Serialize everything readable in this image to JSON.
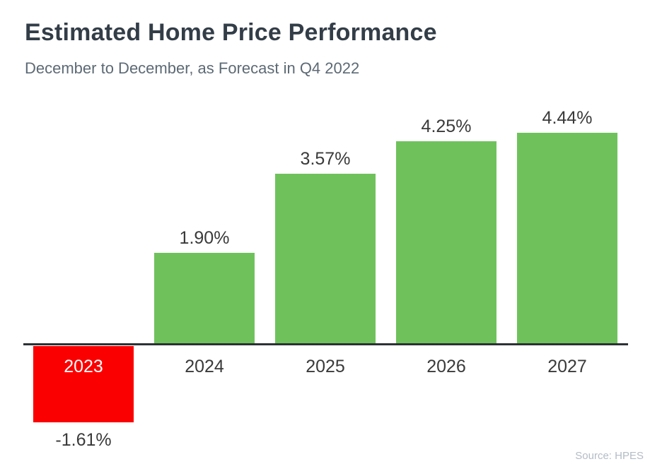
{
  "header": {
    "title": "Estimated Home Price Performance",
    "subtitle": "December to December, as Forecast in Q4 2022"
  },
  "source_credit": "Source: HPES",
  "colors": {
    "positive_bar": "#6fc25b",
    "negative_bar": "#fb0000",
    "axis": "#2c3134",
    "title_text": "#333d47",
    "subtitle_text": "#5d6a75",
    "label_text": "#3a3a3a",
    "inside_label_text": "#ffffff",
    "source_text": "#b4bcc6"
  },
  "chart_data": {
    "type": "bar",
    "categories": [
      "2023",
      "2024",
      "2025",
      "2026",
      "2027"
    ],
    "values": [
      -1.61,
      1.9,
      3.57,
      4.25,
      4.44
    ],
    "labels": [
      "-1.61%",
      "1.90%",
      "3.57%",
      "4.25%",
      "4.44%"
    ],
    "bar_colors": [
      "#fb0000",
      "#6fc25b",
      "#6fc25b",
      "#6fc25b",
      "#6fc25b"
    ],
    "title": "Estimated Home Price Performance",
    "subtitle": "December to December, as Forecast in Q4 2022",
    "xlabel": "",
    "ylabel": "",
    "ylim": [
      -2,
      5
    ],
    "grid": false,
    "legend": null,
    "annotations": [
      "Negative 2023 bar drawn below baseline in red with year label inside bar in white; value label below bar"
    ]
  }
}
